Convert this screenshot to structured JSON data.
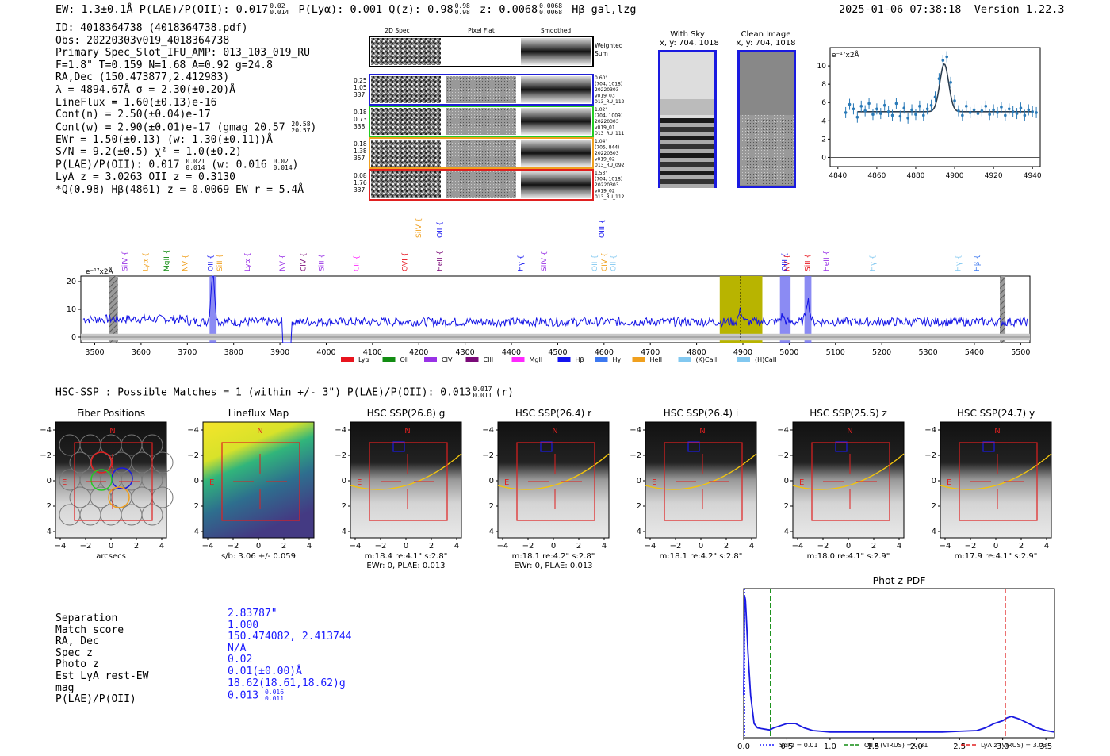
{
  "header": {
    "ew": "EW: 1.3±0.1Å",
    "plae": "P(LAE)/P(OII): 0.017",
    "plae_hi": "0.02",
    "plae_lo": "0.014",
    "plya": "P(Lyα): 0.001",
    "qz": "Q(z): 0.98",
    "qz_hi": "0.98",
    "qz_lo": "0.98",
    "z": "z: 0.0068",
    "z_hi": "0.0068",
    "z_lo": "0.0068",
    "line": "Hβ  gal,lzg",
    "datetime": "2025-01-06 07:38:18",
    "version": "Version 1.22.3"
  },
  "meta": {
    "id": "ID: 4018364738 (4018364738.pdf)",
    "obs": "Obs: 20220303v019_4018364738",
    "primary": "Primary Spec_Slot_IFU_AMP: 013_103_019_RU",
    "params": "F=1.8\"  T=0.159  N=1.68  A=0.92  g=24.8",
    "radec": "RA,Dec (150.473877,2.412983)",
    "lambda": "λ = 4894.67Å  σ = 2.30(±0.20)Å",
    "lineflux": "LineFlux = 1.60(±0.13)e-16",
    "contn": "Cont(n) = 2.50(±0.04)e-17",
    "contw": "Cont(w) = 2.90(±0.01)e-17 (gmag 20.57",
    "gmag_hi": "20.58",
    "gmag_lo": "20.57",
    "ewr": "EWr = 1.50(±0.13) (w: 1.30(±0.11))Å",
    "sn": "S/N = 9.2(±0.5)  χ² = 1.0(±0.2)",
    "plae": "P(LAE)/P(OII): 0.017",
    "plae_hi": "0.021",
    "plae_lo": "0.014",
    "plae_w": "(w: 0.016",
    "plae_w_hi": "0.02",
    "plae_w_lo": "0.014",
    "lya": "LyA z = 3.0263  OII z = 0.3130",
    "q": "*Q(0.98) Hβ(4861) z = 0.0069  EW r = 5.4Å"
  },
  "cutouts": {
    "col_titles": [
      "2D Spec",
      "Pixel Flat",
      "Smoothed"
    ],
    "weighted_sum": [
      "Weighted",
      "Sum"
    ],
    "rows": [
      {
        "color": "#1f1fd6",
        "left": [
          "0.25",
          "1.05",
          "337"
        ],
        "right": [
          "0.60\"",
          "(704, 1018)",
          "20220303",
          "v019_03",
          "013_RU_112"
        ]
      },
      {
        "color": "#22cc22",
        "left": [
          "0.18",
          "0.73",
          "338"
        ],
        "right": [
          "1.02\"",
          "(704, 1009)",
          "20220303",
          "v019_01",
          "013_RU_111"
        ]
      },
      {
        "color": "#f0a020",
        "left": [
          "0.18",
          "1.38",
          "357"
        ],
        "right": [
          "1.04\"",
          "(705, 844)",
          "20220303",
          "v019_02",
          "013_RU_092"
        ]
      },
      {
        "color": "#e02020",
        "left": [
          "0.08",
          "1.76",
          "337"
        ],
        "right": [
          "1.53\"",
          "(704, 1018)",
          "20220303",
          "v019_02",
          "013_RU_112"
        ]
      }
    ],
    "sky_title": "With Sky",
    "clean_title": "Clean Image",
    "coords": "x, y: 704, 1018"
  },
  "zoom_plot": {
    "ylabel": "e⁻¹⁷x2Å",
    "xticks": [
      "4840",
      "4860",
      "4880",
      "4900",
      "4920",
      "4940"
    ],
    "yticks": [
      "0",
      "2",
      "4",
      "6",
      "8",
      "10"
    ]
  },
  "full_spectrum": {
    "ylabel": "e⁻¹⁷x2Å",
    "xticks": [
      "3500",
      "3600",
      "3700",
      "3800",
      "3900",
      "4000",
      "4100",
      "4200",
      "4300",
      "4400",
      "4500",
      "4600",
      "4700",
      "4800",
      "4900",
      "5000",
      "5100",
      "5200",
      "5300",
      "5400",
      "5500"
    ],
    "yticks": [
      "0",
      "10",
      "20"
    ],
    "legend": [
      {
        "label": "Lyα",
        "color": "#e8141e"
      },
      {
        "label": "OII",
        "color": "#128c12"
      },
      {
        "label": "CIV",
        "color": "#9932e6"
      },
      {
        "label": "CIII",
        "color": "#7a0a78"
      },
      {
        "label": "MgII",
        "color": "#ff28ff"
      },
      {
        "label": "Hβ",
        "color": "#1414f0"
      },
      {
        "label": "Hγ",
        "color": "#3c78f0"
      },
      {
        "label": "HeII",
        "color": "#f0a01e"
      },
      {
        "label": "(K)CaII",
        "color": "#82c8f0"
      },
      {
        "label": "(H)CaII",
        "color": "#82c8f0"
      }
    ],
    "line_labels": [
      {
        "t": "SiIV",
        "c": "#9932e6"
      },
      {
        "t": "Lyα",
        "c": "#f0a01e"
      },
      {
        "t": "MgII",
        "c": "#128c12"
      },
      {
        "t": "NV",
        "c": "#f0a01e"
      },
      {
        "t": "OII",
        "c": "#1414f0"
      },
      {
        "t": "SiII",
        "c": "#f0a01e"
      },
      {
        "t": "Lyα",
        "c": "#9932e6"
      },
      {
        "t": "NV",
        "c": "#9932e6"
      },
      {
        "t": "CIV",
        "c": "#7a0a78"
      },
      {
        "t": "SiII",
        "c": "#9932e6"
      },
      {
        "t": "CII",
        "c": "#ff28ff"
      },
      {
        "t": "OVI",
        "c": "#e8141e"
      },
      {
        "t": "SiIV",
        "c": "#f0a01e"
      },
      {
        "t": "HeII",
        "c": "#7a0a78"
      },
      {
        "t": "OII",
        "c": "#1414f0"
      },
      {
        "t": "Hγ",
        "c": "#1414f0"
      },
      {
        "t": "SiIV",
        "c": "#9932e6"
      },
      {
        "t": "OII",
        "c": "#82c8f0"
      },
      {
        "t": "CIV",
        "c": "#f0a01e"
      },
      {
        "t": "OII",
        "c": "#82c8f0"
      },
      {
        "t": "OIII",
        "c": "#1414f0"
      },
      {
        "t": "NV",
        "c": "#e8141e"
      },
      {
        "t": "OIII",
        "c": "#1414f0"
      },
      {
        "t": "SiII",
        "c": "#e8141e"
      },
      {
        "t": "HeII",
        "c": "#9932e6"
      },
      {
        "t": "Hγ",
        "c": "#82c8f0"
      },
      {
        "t": "Hγ",
        "c": "#82c8f0"
      },
      {
        "t": "Hβ",
        "c": "#3c78f0"
      }
    ]
  },
  "hsc": {
    "header": "HSC-SSP : Possible Matches = 1 (within +/- 3\")  P(LAE)/P(OII): 0.013",
    "header_hi": "0.017",
    "header_lo": "0.011",
    "header_tail": "(r)",
    "panels": [
      {
        "title": "Fiber Positions",
        "caption1": "arcsecs",
        "caption2": ""
      },
      {
        "title": "Lineflux Map",
        "caption1": "s/b: 3.06 +/- 0.059",
        "caption2": ""
      },
      {
        "title": "HSC SSP(26.8) g",
        "caption1": "m:18.4  re:4.1\"  s:2.8\"",
        "caption2": "EWr: 0, PLAE: 0.013"
      },
      {
        "title": "HSC SSP(26.4) r",
        "caption1": "m:18.1  re:4.2\"  s:2.8\"",
        "caption2": "EWr: 0, PLAE: 0.013"
      },
      {
        "title": "HSC SSP(26.4) i",
        "caption1": "m:18.1  re:4.2\"  s:2.8\"",
        "caption2": ""
      },
      {
        "title": "HSC SSP(25.5) z",
        "caption1": "m:18.0  re:4.1\"  s:2.9\"",
        "caption2": ""
      },
      {
        "title": "HSC SSP(24.7) y",
        "caption1": "m:17.9  re:4.1\"  s:2.9\"",
        "caption2": ""
      }
    ],
    "ticks": [
      "−4",
      "−2",
      "0",
      "2",
      "4"
    ],
    "north": "N",
    "east": "E"
  },
  "summary": {
    "labels": [
      "Separation",
      "Match score",
      "RA, Dec",
      "Spec z",
      "Photo z",
      "Est LyA rest-EW",
      "mag",
      "P(LAE)/P(OII)"
    ],
    "values": [
      "2.83787\"",
      "1.000",
      "150.474082, 2.413744",
      "N/A",
      "0.02",
      "0.01(±0.00)Å",
      "18.62(18.61,18.62)g",
      "0.013"
    ],
    "plae_hi": "0.016",
    "plae_lo": "0.011"
  },
  "chart_data": [
    {
      "type": "line",
      "title": "",
      "xlabel": "",
      "ylabel": "e-17x2Å",
      "xlim": [
        4836,
        4944
      ],
      "ylim": [
        -1,
        12
      ],
      "series": [
        {
          "name": "data",
          "x": [
            4844,
            4846,
            4848,
            4850,
            4852,
            4854,
            4856,
            4858,
            4860,
            4862,
            4864,
            4866,
            4868,
            4870,
            4872,
            4874,
            4876,
            4878,
            4880,
            4882,
            4884,
            4886,
            4888,
            4890,
            4892,
            4894,
            4896,
            4898,
            4900,
            4902,
            4904,
            4906,
            4908,
            4910,
            4912,
            4914,
            4916,
            4918,
            4920,
            4922,
            4924,
            4926,
            4928,
            4930,
            4932,
            4934,
            4936,
            4938,
            4940,
            4942
          ],
          "y": [
            4.9,
            5.8,
            5.3,
            4.4,
            5.6,
            5.1,
            5.9,
            4.7,
            5.3,
            4.8,
            5.7,
            5.0,
            4.6,
            5.9,
            4.5,
            5.4,
            4.3,
            5.2,
            4.7,
            5.6,
            4.6,
            5.3,
            5.7,
            6.6,
            8.6,
            10.6,
            11.0,
            8.2,
            6.2,
            5.1,
            4.6,
            5.6,
            4.9,
            5.2,
            4.8,
            5.1,
            5.6,
            4.7,
            5.2,
            4.9,
            5.5,
            4.6,
            5.3,
            5.0,
            4.8,
            5.4,
            4.6,
            5.2,
            5.0,
            4.9
          ]
        },
        {
          "name": "fit",
          "model": "gaussian",
          "center": 4894.67,
          "sigma": 2.3,
          "peak": 10.2,
          "continuum": 5.0
        }
      ]
    },
    {
      "type": "line",
      "title": "",
      "xlabel": "",
      "ylabel": "e-17x2Å",
      "xlim": [
        3470,
        5520
      ],
      "ylim": [
        -2,
        22
      ],
      "series": [
        {
          "name": "flux",
          "continuum": 5.5,
          "x_peak": [
            3755,
            4895,
            4985,
            5040
          ],
          "y_peak": [
            21,
            7,
            5,
            11
          ]
        }
      ],
      "highlights": [
        {
          "type": "hatch",
          "x": [
            3530,
            3550
          ]
        },
        {
          "type": "blue",
          "x": [
            3748,
            3763
          ]
        },
        {
          "type": "olive",
          "x": [
            4850,
            4942
          ]
        },
        {
          "type": "blue",
          "x": [
            4980,
            5003
          ]
        },
        {
          "type": "blue",
          "x": [
            5033,
            5048
          ]
        },
        {
          "type": "hatch",
          "x": [
            5455,
            5467
          ]
        }
      ],
      "line_marks_x": [
        3565,
        3610,
        3655,
        3695,
        3750,
        3770,
        3830,
        3905,
        3950,
        3990,
        4065,
        4170,
        4200,
        4245,
        4245,
        4420,
        4470,
        4580,
        4600,
        4620,
        4595,
        4995,
        4990,
        5040,
        5080,
        5180,
        5365,
        5405,
        5465
      ]
    },
    {
      "type": "line",
      "title": "Phot z PDF",
      "xlabel": "",
      "ylabel": "",
      "xlim": [
        0,
        3.6
      ],
      "ylim": [
        0,
        1.05
      ],
      "x": [
        0.0,
        0.01,
        0.02,
        0.03,
        0.05,
        0.08,
        0.12,
        0.16,
        0.2,
        0.25,
        0.3,
        0.35,
        0.4,
        0.5,
        0.6,
        0.7,
        0.8,
        1.0,
        1.2,
        1.5,
        1.8,
        2.0,
        2.3,
        2.5,
        2.7,
        2.8,
        2.9,
        3.0,
        3.05,
        3.1,
        3.2,
        3.3,
        3.4,
        3.5,
        3.6
      ],
      "y": [
        0.3,
        1.0,
        0.97,
        0.85,
        0.6,
        0.3,
        0.1,
        0.07,
        0.065,
        0.06,
        0.055,
        0.07,
        0.08,
        0.1,
        0.1,
        0.07,
        0.05,
        0.04,
        0.04,
        0.04,
        0.04,
        0.04,
        0.04,
        0.045,
        0.05,
        0.07,
        0.1,
        0.12,
        0.14,
        0.15,
        0.13,
        0.1,
        0.07,
        0.05,
        0.04
      ],
      "vlines": [
        {
          "name": "Sol z = 0.01",
          "x": 0.01,
          "color": "#1a1aff",
          "style": "dotted"
        },
        {
          "name": "OII z (VIRUS) = 0.31",
          "x": 0.31,
          "color": "#128c12",
          "style": "dashed"
        },
        {
          "name": "LyA z (VIRUS) = 3.03",
          "x": 3.03,
          "color": "#e02020",
          "style": "dashed"
        }
      ],
      "xticks": [
        "0.0",
        "0.5",
        "1.0",
        "1.5",
        "2.0",
        "2.5",
        "3.0",
        "3.5"
      ]
    }
  ]
}
